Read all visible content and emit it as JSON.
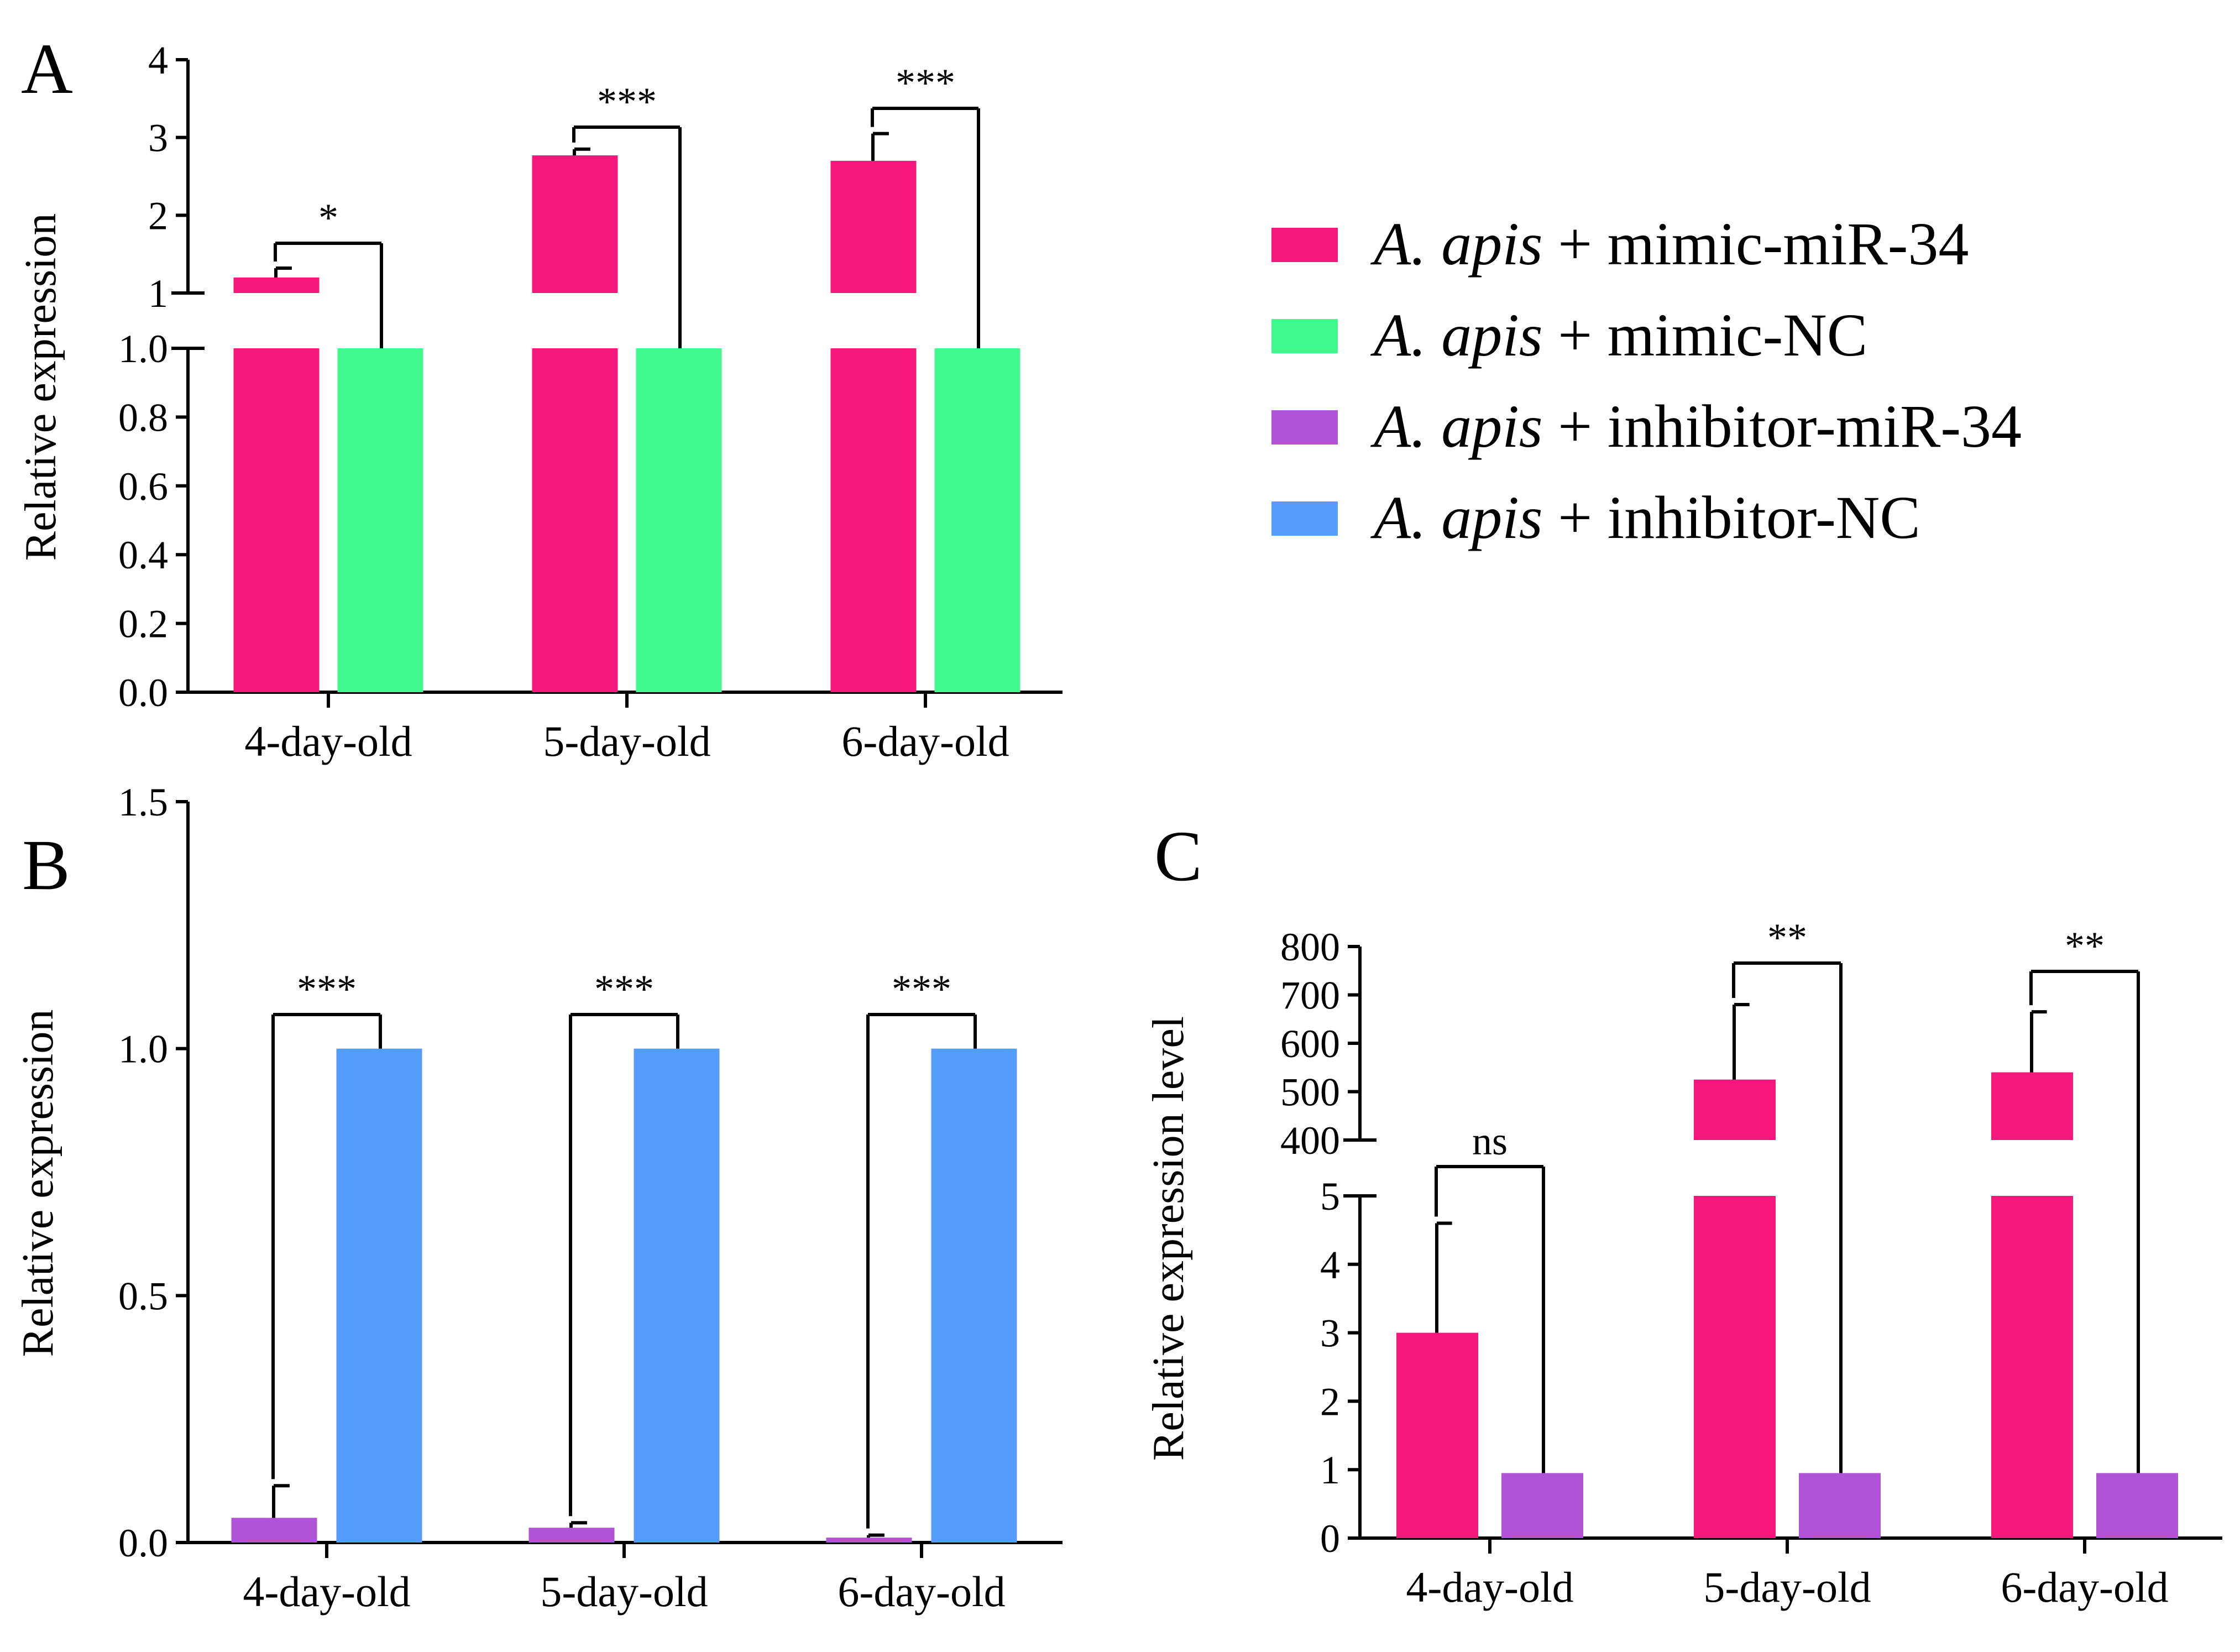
{
  "colors": {
    "mimic_mir34": "#F5177C",
    "mimic_nc": "#41FA8D",
    "inhibitor_mir34": "#B153D6",
    "inhibitor_nc": "#559DFC",
    "axis": "#000000"
  },
  "legend": {
    "position": "right",
    "items": [
      {
        "species": "A. apis",
        "text": " + mimic-miR-34",
        "color": "#F5177C",
        "icon": "pink-swatch"
      },
      {
        "species": "A. apis",
        "text": " + mimic-NC",
        "color": "#41FA8D",
        "icon": "green-swatch"
      },
      {
        "species": "A. apis",
        "text": " + inhibitor-miR-34",
        "color": "#B153D6",
        "icon": "purple-swatch"
      },
      {
        "species": "A. apis",
        "text": " + inhibitor-NC",
        "color": "#559DFC",
        "icon": "blue-swatch"
      }
    ]
  },
  "chart_data": [
    {
      "panel_label": "A",
      "type": "bar",
      "ylabel": "Relative expression",
      "categories": [
        "4-day-old",
        "5-day-old",
        "6-day-old"
      ],
      "axis_break": {
        "lower": [
          0,
          1.0
        ],
        "upper": [
          1,
          4
        ]
      },
      "lower_ticks": [
        "0.0",
        "0.2",
        "0.4",
        "0.6",
        "0.8",
        "1.0"
      ],
      "upper_ticks": [
        "1",
        "2",
        "3",
        "4"
      ],
      "series": [
        {
          "name": "mimic-miR-34",
          "color": "#F5177C",
          "values": [
            1.2,
            2.77,
            2.7
          ],
          "errors": [
            0.12,
            0.08,
            0.35
          ]
        },
        {
          "name": "mimic-NC",
          "color": "#41FA8D",
          "values": [
            1.0,
            1.0,
            1.0
          ],
          "errors": [
            0,
            0,
            0
          ]
        }
      ],
      "significance": [
        "*",
        "***",
        "***"
      ]
    },
    {
      "panel_label": "B",
      "type": "bar",
      "ylabel": "Relative expression",
      "categories": [
        "4-day-old",
        "5-day-old",
        "6-day-old"
      ],
      "ylim": [
        0,
        1.5
      ],
      "ticks": [
        "0.0",
        "0.5",
        "1.0",
        "1.5"
      ],
      "series": [
        {
          "name": "inhibitor-miR-34",
          "color": "#B153D6",
          "values": [
            0.05,
            0.03,
            0.01
          ],
          "errors": [
            0.065,
            0.01,
            0.005
          ]
        },
        {
          "name": "inhibitor-NC",
          "color": "#559DFC",
          "values": [
            1.0,
            1.0,
            1.0
          ],
          "errors": [
            0,
            0,
            0
          ]
        }
      ],
      "significance": [
        "***",
        "***",
        "***"
      ]
    },
    {
      "panel_label": "C",
      "type": "bar",
      "ylabel": "Relative expression level",
      "categories": [
        "4-day-old",
        "5-day-old",
        "6-day-old"
      ],
      "axis_break": {
        "lower": [
          0,
          5
        ],
        "upper": [
          400,
          800
        ]
      },
      "lower_ticks": [
        "0",
        "1",
        "2",
        "3",
        "4",
        "5"
      ],
      "upper_ticks": [
        "400",
        "500",
        "600",
        "700",
        "800"
      ],
      "series": [
        {
          "name": "mimic-miR-34",
          "color": "#F5177C",
          "values": [
            3.0,
            525,
            540
          ],
          "errors": [
            1.6,
            155,
            125
          ]
        },
        {
          "name": "inhibitor-miR-34",
          "color": "#B153D6",
          "values": [
            0.95,
            0.95,
            0.95
          ],
          "errors": [
            0,
            0,
            0
          ]
        }
      ],
      "significance": [
        "ns",
        "**",
        "**"
      ]
    }
  ]
}
